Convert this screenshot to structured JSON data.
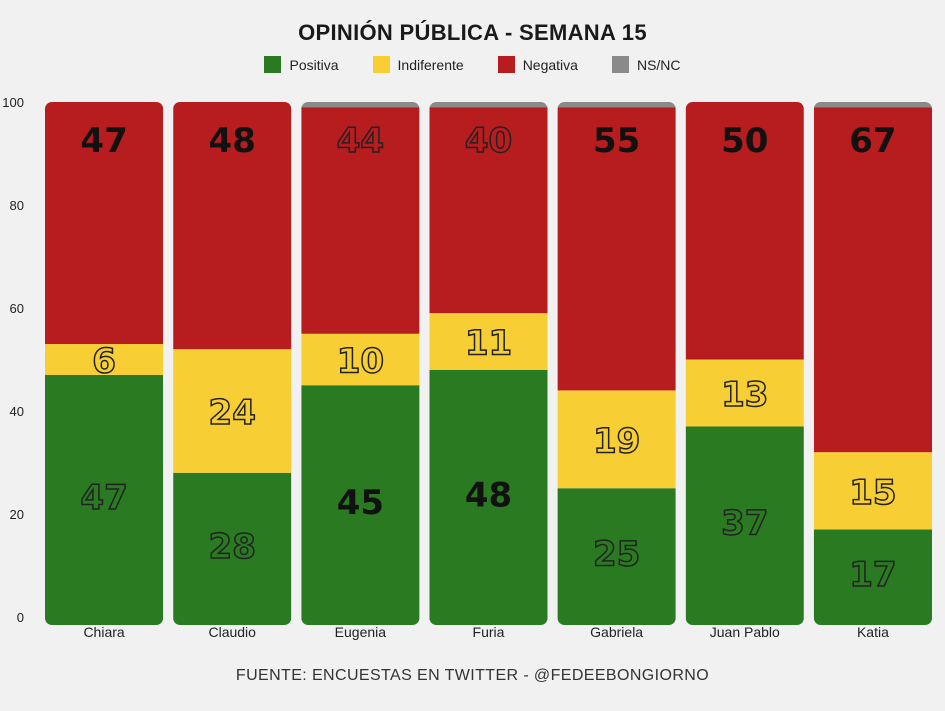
{
  "chart_data": {
    "type": "bar",
    "stacked": true,
    "title": "OPINIÓN PÚBLICA - SEMANA 15",
    "categories": [
      "Chiara",
      "Claudio",
      "Eugenia",
      "Furia",
      "Gabriela",
      "Juan Pablo",
      "Katia"
    ],
    "series": [
      {
        "name": "Positiva",
        "color": "#2a7a22",
        "values": [
          47,
          28,
          45,
          48,
          25,
          37,
          17
        ]
      },
      {
        "name": "Indiferente",
        "color": "#f7cf34",
        "values": [
          6,
          24,
          10,
          11,
          19,
          13,
          15
        ]
      },
      {
        "name": "Negativa",
        "color": "#b71c1f",
        "values": [
          47,
          48,
          44,
          40,
          55,
          50,
          67
        ]
      },
      {
        "name": "NS/NC",
        "color": "#8a8a8a",
        "values": [
          0,
          0,
          1,
          1,
          1,
          0,
          1
        ]
      }
    ],
    "labels": {
      "Positiva": [
        "47",
        "28",
        "45",
        "48",
        "25",
        "37",
        "17"
      ],
      "Indiferente": [
        "6",
        "24",
        "10",
        "11",
        "19",
        "13",
        "15"
      ],
      "Negativa": [
        "47",
        "48",
        "44",
        "40",
        "55",
        "50",
        "67"
      ]
    },
    "label_style": {
      "Positiva": [
        "outline",
        "outline",
        "solid",
        "solid",
        "outline",
        "outline",
        "outline"
      ],
      "Indiferente": [
        "outline",
        "outline",
        "outline",
        "outline",
        "outline",
        "outline",
        "outline"
      ],
      "Negativa": [
        "solid",
        "solid",
        "outline",
        "outline",
        "solid",
        "solid",
        "solid"
      ]
    },
    "y_ticks": [
      "0",
      "20",
      "40",
      "60",
      "80",
      "100"
    ],
    "ylim": [
      0,
      100
    ],
    "xlabel": "",
    "ylabel": "",
    "legend_position": "top-center",
    "grid": false
  },
  "source": "FUENTE: ENCUESTAS EN TWITTER - @FEDEEBONGIORNO"
}
